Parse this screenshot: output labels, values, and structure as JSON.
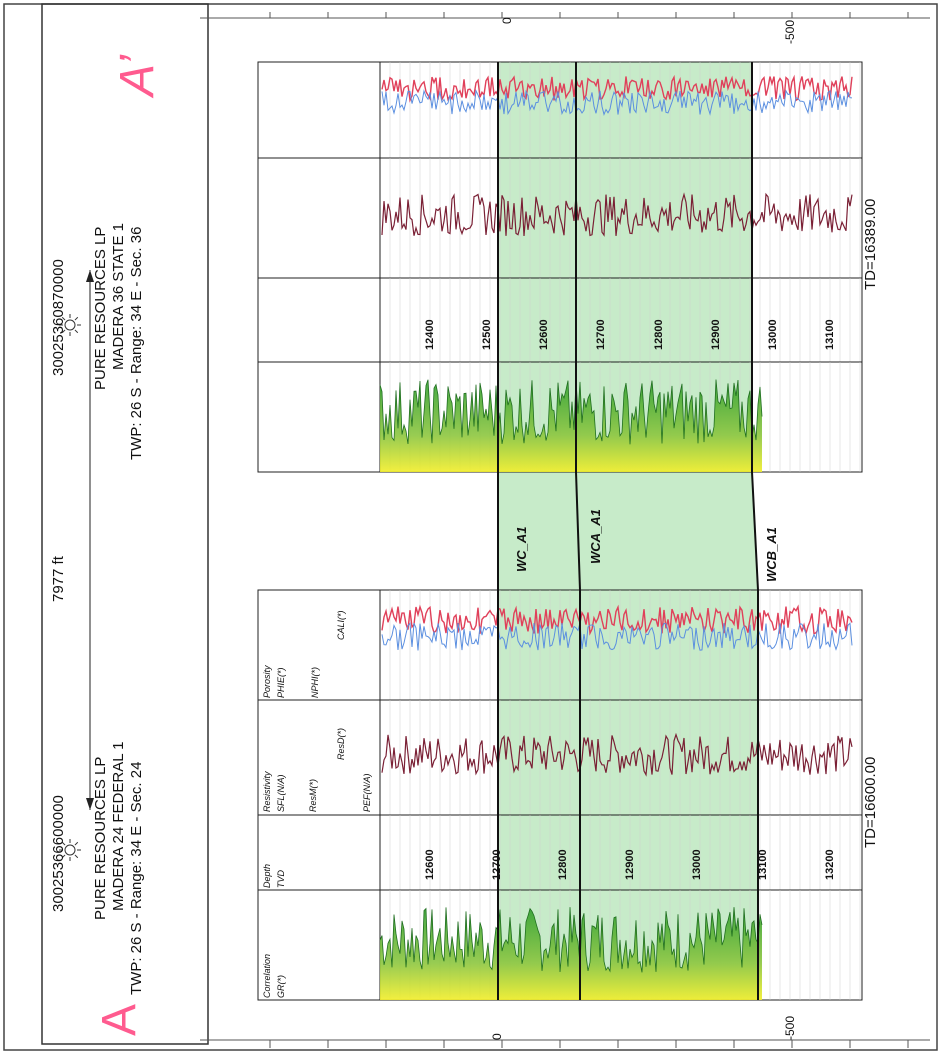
{
  "left_well": {
    "api": "30025366600000",
    "operator": "PURE RESOURCES LP",
    "name": "MADERA 24 FEDERAL 1",
    "location": "TWP: 26  S - Range: 34 E - Sec. 24",
    "td": "TD=16600.00",
    "depths": [
      "12600",
      "12700",
      "12800",
      "12900",
      "13000",
      "13100",
      "13200"
    ],
    "end_label": "A"
  },
  "right_well": {
    "api": "30025360870000",
    "operator": "PURE RESOURCES LP",
    "name": "MADERA 36 STATE 1",
    "location": "TWP: 26  S - Range: 34 E - Sec. 36",
    "td": "TD=16389.00",
    "depths": [
      "12400",
      "12500",
      "12600",
      "12700",
      "12800",
      "12900",
      "13000",
      "13100"
    ],
    "end_label": "A’"
  },
  "distance": "7977 ft",
  "tops": [
    "WC_A1",
    "WCA_A1",
    "WCB_A1"
  ],
  "scale_labels": {
    "zero": "0",
    "minus500": "-500"
  },
  "track_headers": {
    "correlation": "Correlation",
    "gr": "GR(*)",
    "depth": "Depth",
    "tvd": "TVD",
    "resistivity": "Resistivity",
    "sfl": "SFL(N/A)",
    "resm": "ResM(*)",
    "resd": "ResD(*)",
    "pef": "PEF(N/A)",
    "porosity": "Porosity",
    "phie": "PHIE(*)",
    "nphi": "NPHI(*)",
    "cali": "CALI(*)"
  },
  "colors": {
    "green_band": "#c7ebc9",
    "gr_fill_low": "#2e9e2e",
    "gr_fill_high": "#f2ee2a",
    "resistivity": "#7a2035",
    "porosity_red": "#e0405a",
    "porosity_blue": "#5b8fe0"
  }
}
